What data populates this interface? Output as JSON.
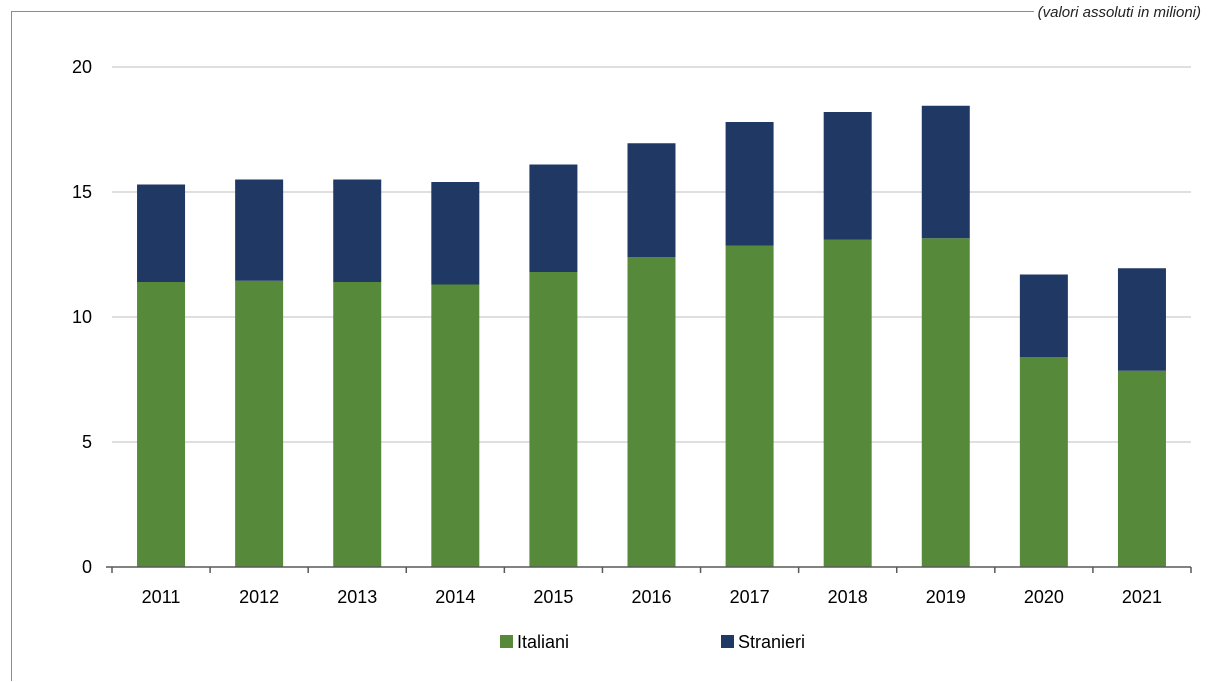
{
  "chart_data": {
    "type": "bar",
    "stacked": true,
    "note": "(valori assoluti in milioni)",
    "title": "",
    "xlabel": "",
    "ylabel": "",
    "categories": [
      "2011",
      "2012",
      "2013",
      "2014",
      "2015",
      "2016",
      "2017",
      "2018",
      "2019",
      "2020",
      "2021"
    ],
    "series": [
      {
        "name": "Italiani",
        "color": "#568a3a",
        "values": [
          11.4,
          11.45,
          11.4,
          11.3,
          11.8,
          12.4,
          12.85,
          13.1,
          13.15,
          8.4,
          7.85
        ]
      },
      {
        "name": "Stranieri",
        "color": "#203864",
        "values": [
          3.9,
          4.05,
          4.1,
          4.1,
          4.3,
          4.55,
          4.95,
          5.1,
          5.3,
          3.3,
          4.1
        ]
      }
    ],
    "ylim": [
      0,
      20
    ],
    "yticks": [
      0,
      5,
      10,
      15,
      20
    ],
    "grid": true,
    "legend_position": "bottom"
  }
}
